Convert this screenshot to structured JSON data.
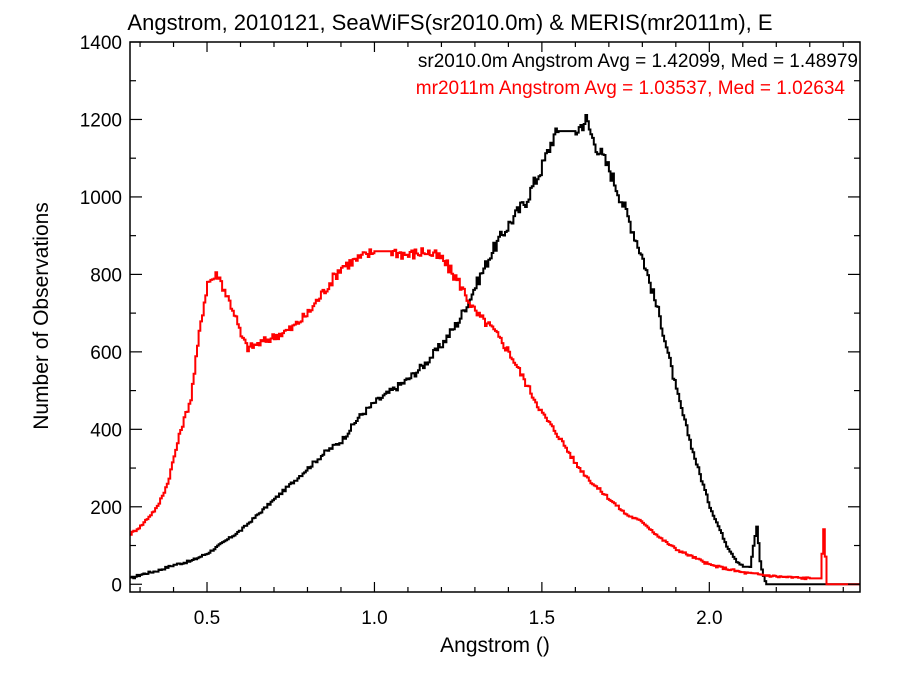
{
  "chart_data": {
    "type": "line",
    "title": "Angstrom, 2010121, SeaWiFS(sr2010.0m) & MERIS(mr2011m), E",
    "xlabel": "Angstrom ()",
    "ylabel": "Number of Observations",
    "xlim": [
      0.27,
      2.45
    ],
    "ylim": [
      -20,
      1400
    ],
    "x_ticks": [
      0.5,
      1.0,
      1.5,
      2.0
    ],
    "x_tick_labels": [
      "0.5",
      "1.0",
      "1.5",
      "2.0"
    ],
    "y_ticks": [
      0,
      200,
      400,
      600,
      800,
      1000,
      1200,
      1400
    ],
    "y_tick_labels": [
      "0",
      "200",
      "400",
      "600",
      "800",
      "1000",
      "1200",
      "1400"
    ],
    "grid": false,
    "annotations": [
      {
        "text": "sr2010.0m Angstrom Avg = 1.42099, Med = 1.48979",
        "color": "#000000"
      },
      {
        "text": "mr2011m Angstrom Avg = 1.03537, Med = 1.02634",
        "color": "#ff0000"
      }
    ],
    "series": [
      {
        "color": "#000000",
        "step": true,
        "x": [
          0.27,
          0.3,
          0.35,
          0.4,
          0.45,
          0.5,
          0.55,
          0.6,
          0.65,
          0.7,
          0.75,
          0.8,
          0.85,
          0.9,
          0.95,
          1.0,
          1.05,
          1.1,
          1.15,
          1.2,
          1.25,
          1.3,
          1.35,
          1.4,
          1.45,
          1.5,
          1.53,
          1.55,
          1.6,
          1.63,
          1.65,
          1.7,
          1.75,
          1.8,
          1.85,
          1.9,
          1.95,
          2.0,
          2.05,
          2.08,
          2.1,
          2.12,
          2.14,
          2.15,
          2.16,
          2.17,
          2.45
        ],
        "y": [
          15,
          25,
          35,
          50,
          60,
          80,
          110,
          140,
          180,
          220,
          260,
          300,
          340,
          370,
          430,
          470,
          500,
          530,
          570,
          620,
          680,
          770,
          860,
          930,
          990,
          1080,
          1150,
          1170,
          1170,
          1200,
          1150,
          1070,
          960,
          840,
          690,
          500,
          340,
          200,
          100,
          60,
          45,
          45,
          150,
          60,
          20,
          0,
          0
        ]
      },
      {
        "color": "#ff0000",
        "step": true,
        "x": [
          0.27,
          0.3,
          0.35,
          0.38,
          0.4,
          0.42,
          0.45,
          0.48,
          0.5,
          0.53,
          0.55,
          0.58,
          0.6,
          0.62,
          0.65,
          0.7,
          0.75,
          0.8,
          0.85,
          0.9,
          0.95,
          1.0,
          1.05,
          1.1,
          1.15,
          1.2,
          1.25,
          1.3,
          1.35,
          1.4,
          1.45,
          1.5,
          1.55,
          1.6,
          1.65,
          1.7,
          1.75,
          1.8,
          1.85,
          1.9,
          1.95,
          2.0,
          2.05,
          2.1,
          2.2,
          2.3,
          2.33,
          2.34,
          2.35,
          2.45
        ],
        "y": [
          130,
          150,
          200,
          260,
          330,
          400,
          480,
          680,
          780,
          800,
          760,
          700,
          640,
          610,
          620,
          640,
          660,
          700,
          760,
          820,
          840,
          860,
          860,
          850,
          860,
          840,
          780,
          700,
          660,
          600,
          520,
          440,
          380,
          310,
          260,
          220,
          180,
          160,
          120,
          90,
          70,
          50,
          40,
          30,
          20,
          15,
          15,
          145,
          0,
          0
        ]
      }
    ]
  }
}
